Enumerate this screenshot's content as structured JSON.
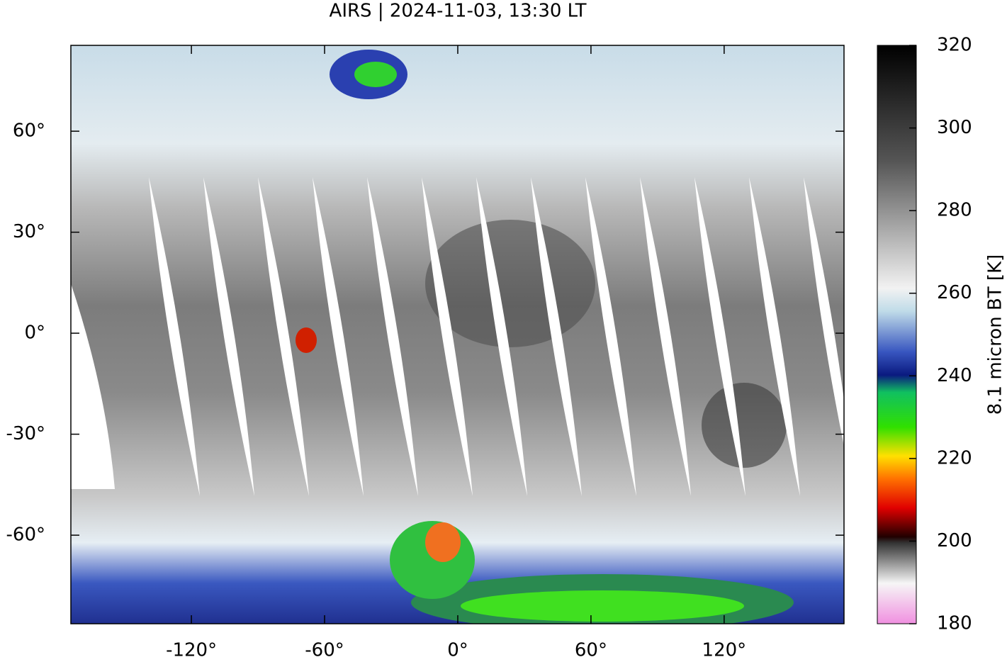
{
  "chart_data": {
    "type": "map",
    "title": "AIRS | 2024-11-03, 13:30 LT",
    "xlim": [
      -174.3,
      174
    ],
    "ylim": [
      -86.3,
      85.5
    ],
    "xticks": [
      {
        "value": -120,
        "label": "-120°"
      },
      {
        "value": -60,
        "label": "-60°"
      },
      {
        "value": 0,
        "label": "0°"
      },
      {
        "value": 60,
        "label": "60°"
      },
      {
        "value": 120,
        "label": "120°"
      }
    ],
    "yticks": [
      {
        "value": -60,
        "label": "-60°"
      },
      {
        "value": -30,
        "label": "-30°"
      },
      {
        "value": 0,
        "label": "0°"
      },
      {
        "value": 30,
        "label": "30°"
      },
      {
        "value": 60,
        "label": "60°"
      }
    ],
    "colorbar": {
      "label": "8.1 micron BT [K]",
      "lim": [
        180,
        320
      ],
      "ticks": [
        180,
        200,
        220,
        240,
        260,
        280,
        300,
        320
      ]
    }
  }
}
